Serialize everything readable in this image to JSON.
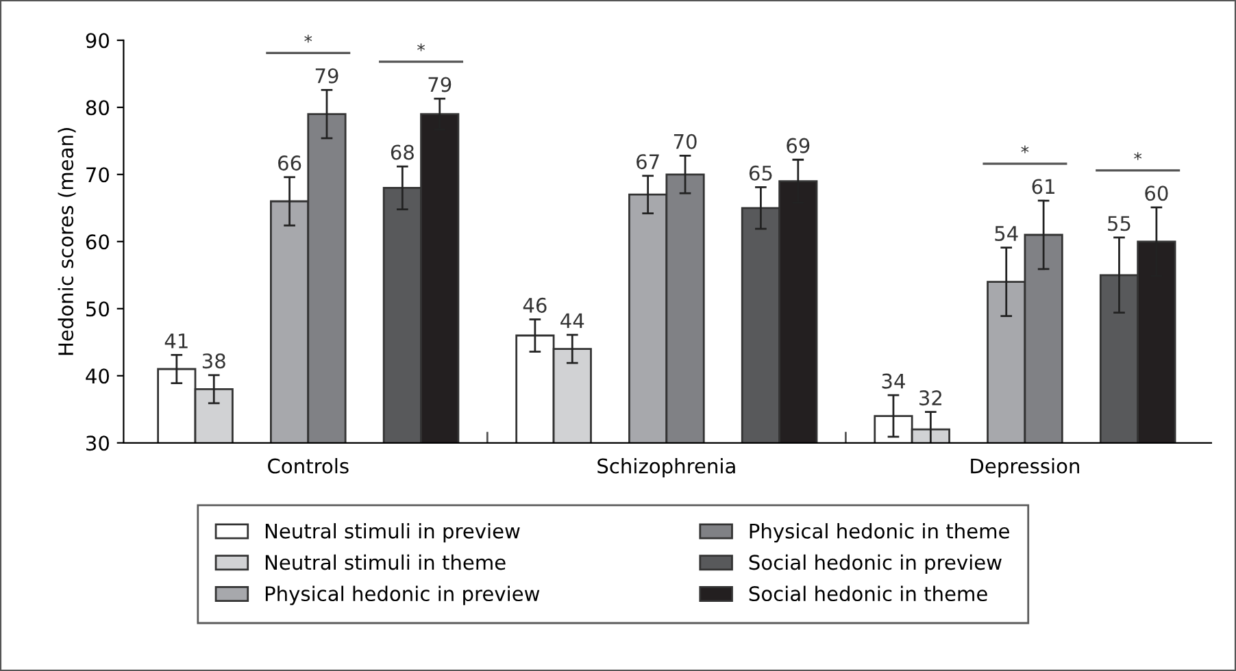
{
  "chart_data": {
    "type": "bar",
    "ylabel": "Hedonic scores (mean)",
    "categories": [
      "Controls",
      "Schizophrenia",
      "Depression"
    ],
    "ylim": [
      30,
      90
    ],
    "yticks": [
      30,
      40,
      50,
      60,
      70,
      80,
      90
    ],
    "grid": false,
    "legend": "bottom",
    "data_labels": true,
    "series": [
      {
        "name": "Neutral stimuli in preview",
        "color": "#ffffff",
        "values": [
          41,
          46,
          34
        ],
        "errors": [
          2.1,
          2.4,
          3.1
        ]
      },
      {
        "name": "Neutral stimuli in theme",
        "color": "#d1d2d4",
        "values": [
          38,
          44,
          32
        ],
        "errors": [
          2.1,
          2.1,
          2.6
        ]
      },
      {
        "name": "Physical hedonic in preview",
        "color": "#a7a8ac",
        "values": [
          66,
          67,
          54
        ],
        "errors": [
          3.6,
          2.8,
          5.1
        ]
      },
      {
        "name": "Physical hedonic in theme",
        "color": "#808185",
        "values": [
          79,
          70,
          61
        ],
        "errors": [
          3.6,
          2.8,
          5.1
        ]
      },
      {
        "name": "Social hedonic in preview",
        "color": "#58595b",
        "values": [
          68,
          65,
          55
        ],
        "errors": [
          3.2,
          3.1,
          5.6
        ]
      },
      {
        "name": "Social hedonic in theme",
        "color": "#231f20",
        "values": [
          79,
          69,
          60
        ],
        "errors": [
          2.3,
          3.2,
          5.1
        ]
      }
    ],
    "annotations": [
      "*",
      "*",
      "*",
      "*"
    ]
  }
}
